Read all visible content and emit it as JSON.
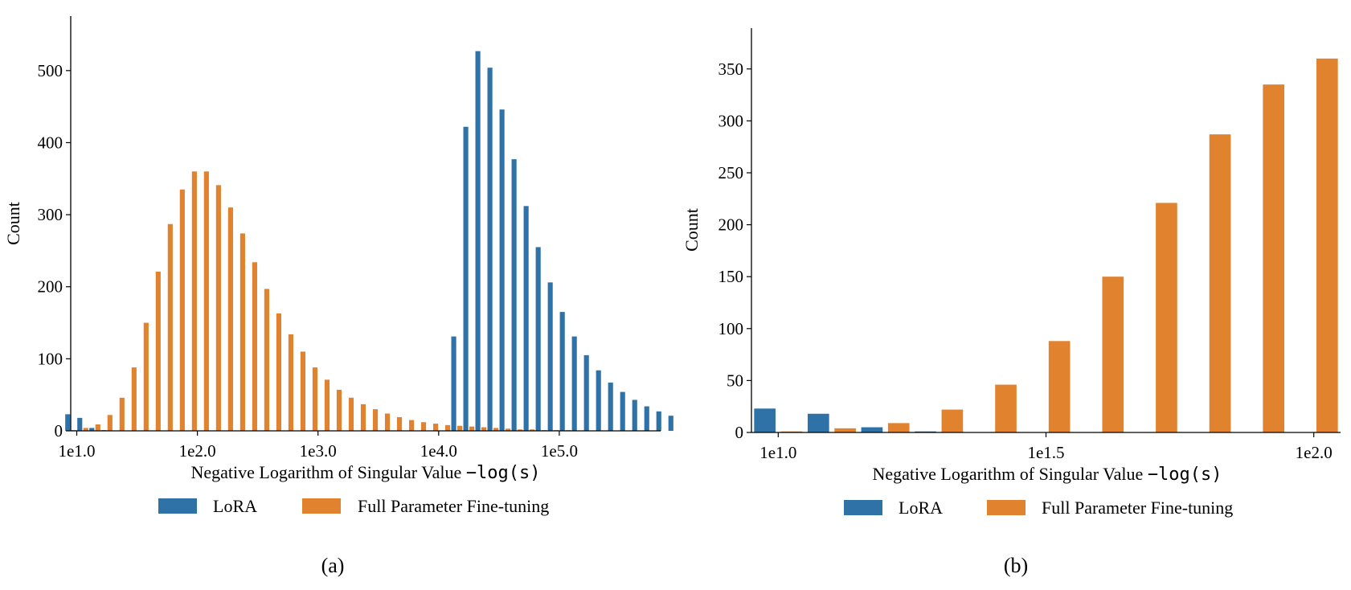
{
  "colors": {
    "lora": "#2f72a8",
    "full": "#e0822e"
  },
  "legend": {
    "lora": "LoRA",
    "full": "Full Parameter Fine-tuning"
  },
  "chart_data": [
    {
      "type": "bar",
      "caption": "(a)",
      "xlabel_text": "Negative Logarithm of Singular Value ",
      "xlabel_math": "−log(s)",
      "ylabel": "Count",
      "xscale": "log10",
      "xlim_log10": [
        0.95,
        5.84
      ],
      "ylim": [
        0,
        550
      ],
      "yticks": [
        0,
        100,
        200,
        300,
        400,
        500
      ],
      "ytick_labels": [
        "0",
        "100",
        "200",
        "300",
        "400",
        "500"
      ],
      "xticks_log10": [
        1,
        2,
        3,
        4,
        5
      ],
      "xtick_labels": [
        "1e1.0",
        "1e2.0",
        "1e3.0",
        "1e4.0",
        "1e5.0"
      ],
      "bin_width_log10": 0.1,
      "series": [
        {
          "name": "LoRA",
          "bin_start_log10": 0.9,
          "values": [
            23,
            18,
            4,
            1,
            0,
            0,
            0,
            0,
            0,
            0,
            0,
            0,
            0,
            0,
            0,
            0,
            0,
            0,
            0,
            0,
            0,
            0,
            0,
            0,
            0,
            0,
            0,
            0,
            0,
            0,
            0,
            0,
            131,
            422,
            527,
            504,
            446,
            377,
            312,
            255,
            206,
            165,
            131,
            105,
            84,
            67,
            54,
            43,
            34,
            27,
            21
          ]
        },
        {
          "name": "Full Parameter Fine-tuning",
          "bin_start_log10": 0.9,
          "values": [
            1,
            4,
            9,
            22,
            46,
            88,
            150,
            221,
            287,
            335,
            360,
            360,
            341,
            310,
            274,
            234,
            197,
            163,
            134,
            110,
            88,
            71,
            57,
            46,
            37,
            30,
            24,
            19,
            15,
            12,
            10,
            8,
            7,
            6,
            5,
            4,
            3,
            2,
            2,
            1,
            1,
            1,
            0,
            0,
            0,
            0,
            0,
            0,
            0,
            0,
            0
          ]
        }
      ]
    },
    {
      "type": "bar",
      "caption": "(b)",
      "xlabel_text": "Negative Logarithm of Singular Value ",
      "xlabel_math": "−log(s)",
      "ylabel": "Count",
      "xscale": "log10",
      "xlim_log10": [
        0.95,
        2.05
      ],
      "ylim": [
        0,
        380
      ],
      "yticks": [
        0,
        50,
        100,
        150,
        200,
        250,
        300,
        350
      ],
      "ytick_labels": [
        "0",
        "50",
        "100",
        "150",
        "200",
        "250",
        "300",
        "350"
      ],
      "xticks_log10": [
        1.0,
        1.5,
        2.0
      ],
      "xtick_labels": [
        "1e1.0",
        "1e1.5",
        "1e2.0"
      ],
      "bin_width_log10": 0.1,
      "series": [
        {
          "name": "LoRA",
          "bin_start_log10": 0.95,
          "values": [
            23,
            18,
            5,
            1,
            0,
            0,
            0,
            0,
            0,
            0,
            0
          ]
        },
        {
          "name": "Full Parameter Fine-tuning",
          "bin_start_log10": 0.95,
          "values": [
            1,
            4,
            9,
            22,
            46,
            88,
            150,
            221,
            287,
            335,
            360
          ]
        }
      ]
    }
  ]
}
